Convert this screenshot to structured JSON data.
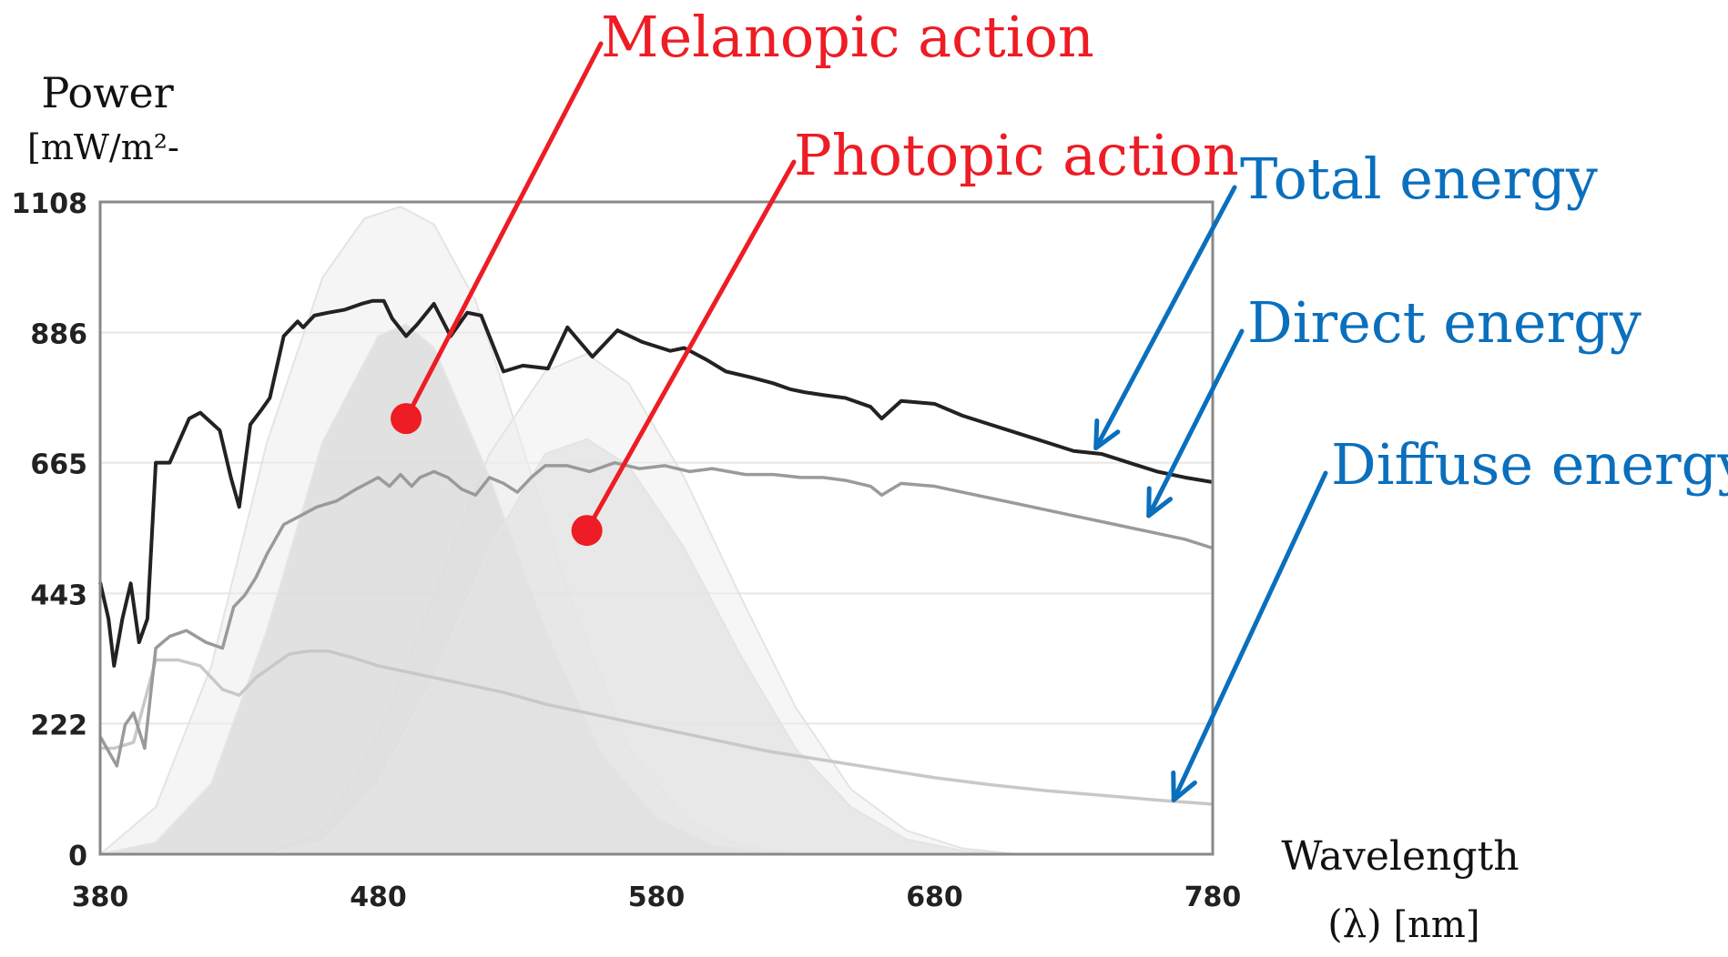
{
  "chart_data": {
    "type": "area",
    "y_title": "Power",
    "y_unit": "[mW/m²-",
    "x_title": "Wavelength",
    "x_unit_symbol": "(λ)",
    "x_unit": "[nm]",
    "xlim": [
      380,
      780
    ],
    "ylim": [
      0,
      1108
    ],
    "x_ticks": [
      380,
      480,
      580,
      680,
      780
    ],
    "y_ticks": [
      0,
      222,
      443,
      665,
      886,
      1108
    ],
    "grid": true,
    "series": [
      {
        "name": "Total energy",
        "color": "#222222",
        "x": [
          380,
          383,
          385,
          388,
          391,
          394,
          397,
          400,
          405,
          412,
          416,
          423,
          427,
          430,
          434,
          438,
          441,
          446,
          451,
          453,
          457,
          462,
          468,
          474,
          478,
          482,
          485,
          490,
          494,
          500,
          506,
          512,
          517,
          525,
          532,
          541,
          548,
          557,
          566,
          575,
          585,
          590,
          598,
          605,
          614,
          622,
          628,
          633,
          640,
          648,
          657,
          661,
          668,
          680,
          690,
          700,
          710,
          720,
          730,
          740,
          750,
          760,
          770,
          780
        ],
        "values": [
          462,
          400,
          320,
          400,
          460,
          360,
          400,
          665,
          665,
          740,
          750,
          720,
          640,
          590,
          730,
          755,
          775,
          880,
          905,
          895,
          915,
          920,
          925,
          935,
          940,
          940,
          910,
          880,
          900,
          935,
          880,
          920,
          915,
          820,
          830,
          825,
          895,
          845,
          890,
          870,
          855,
          860,
          840,
          820,
          810,
          800,
          790,
          785,
          780,
          775,
          760,
          740,
          770,
          765,
          745,
          730,
          715,
          700,
          685,
          680,
          665,
          650,
          640,
          632
        ]
      },
      {
        "name": "Direct energy",
        "color": "#9a9a9a",
        "x": [
          380,
          383,
          386,
          389,
          392,
          396,
          400,
          405,
          411,
          418,
          424,
          428,
          432,
          436,
          440,
          446,
          452,
          458,
          465,
          472,
          480,
          484,
          488,
          492,
          495,
          500,
          505,
          510,
          515,
          520,
          525,
          530,
          535,
          540,
          548,
          556,
          565,
          574,
          583,
          592,
          600,
          612,
          622,
          632,
          640,
          648,
          657,
          661,
          668,
          680,
          690,
          700,
          710,
          720,
          730,
          740,
          750,
          760,
          770,
          780
        ],
        "values": [
          200,
          175,
          150,
          220,
          240,
          180,
          350,
          370,
          380,
          360,
          350,
          420,
          440,
          470,
          510,
          560,
          575,
          590,
          600,
          620,
          640,
          625,
          645,
          625,
          640,
          650,
          640,
          620,
          610,
          640,
          630,
          615,
          640,
          660,
          660,
          650,
          665,
          655,
          660,
          650,
          655,
          645,
          645,
          640,
          640,
          635,
          625,
          610,
          630,
          625,
          615,
          605,
          595,
          585,
          575,
          565,
          555,
          545,
          535,
          520
        ]
      },
      {
        "name": "Diffuse energy",
        "color": "#c8c8c8",
        "x": [
          380,
          385,
          392,
          400,
          408,
          416,
          424,
          430,
          436,
          442,
          448,
          455,
          462,
          470,
          480,
          495,
          510,
          525,
          540,
          560,
          580,
          600,
          620,
          640,
          660,
          680,
          700,
          720,
          740,
          760,
          780
        ],
        "values": [
          180,
          180,
          190,
          330,
          330,
          320,
          280,
          270,
          300,
          320,
          340,
          345,
          345,
          335,
          320,
          305,
          290,
          275,
          255,
          235,
          215,
          195,
          175,
          160,
          145,
          130,
          118,
          108,
          100,
          92,
          85
        ]
      },
      {
        "name": "Melanopic action",
        "color": "#dddddd",
        "peak": 490,
        "x": [
          380,
          400,
          420,
          440,
          460,
          480,
          490,
          500,
          520,
          540,
          560,
          580,
          600,
          620,
          640,
          660
        ],
        "values": [
          0,
          20,
          120,
          380,
          700,
          880,
          900,
          860,
          640,
          380,
          170,
          60,
          15,
          3,
          0,
          0
        ]
      },
      {
        "name": "Photopic action",
        "color": "#e3e3e3",
        "peak": 555,
        "x": [
          440,
          460,
          480,
          500,
          520,
          540,
          555,
          570,
          590,
          610,
          630,
          650,
          670,
          690,
          710,
          730
        ],
        "values": [
          0,
          20,
          120,
          300,
          520,
          680,
          705,
          660,
          520,
          340,
          180,
          80,
          25,
          6,
          0,
          0
        ]
      },
      {
        "name": "Melanopic action envelope",
        "color": "#ececec",
        "x": [
          380,
          400,
          420,
          440,
          460,
          475,
          488,
          500,
          515,
          530,
          550,
          570,
          590,
          610,
          630
        ],
        "values": [
          0,
          80,
          320,
          700,
          980,
          1080,
          1100,
          1070,
          940,
          720,
          420,
          180,
          60,
          15,
          0
        ]
      },
      {
        "name": "Photopic action envelope",
        "color": "#eeeeee",
        "x": [
          440,
          460,
          480,
          500,
          520,
          540,
          555,
          570,
          590,
          610,
          630,
          650,
          670,
          690,
          710,
          730
        ],
        "values": [
          0,
          40,
          200,
          440,
          680,
          820,
          850,
          800,
          640,
          440,
          250,
          110,
          40,
          10,
          0,
          0
        ]
      }
    ],
    "annotations": [
      {
        "text": "Melanopic action",
        "color": "#ee1c24",
        "target": [
          490,
          740
        ]
      },
      {
        "text": "Photopic action",
        "color": "#ee1c24",
        "target": [
          555,
          550
        ]
      },
      {
        "text": "Total energy",
        "color": "#0a6fbd",
        "target": [
          738,
          690
        ]
      },
      {
        "text": "Direct energy",
        "color": "#0a6fbd",
        "target": [
          757,
          575
        ]
      },
      {
        "text": "Diffuse energy",
        "color": "#0a6fbd",
        "target": [
          766,
          92
        ]
      }
    ]
  }
}
